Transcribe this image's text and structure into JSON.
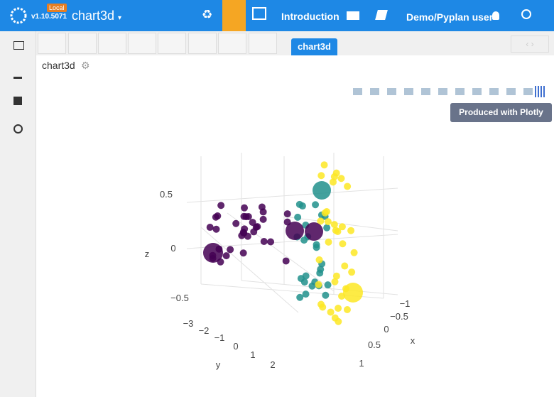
{
  "header": {
    "badge": "Local",
    "version": "v1.10.5071",
    "app_title": "chart3d",
    "menu_item": "Introduction",
    "user": "Demo/Pyplan user"
  },
  "tabs": [
    "chart3d"
  ],
  "node_title": "chart3d",
  "tooltip": "Produced with Plotly",
  "plot": {
    "z_axis": {
      "label": "z",
      "ticks": [
        "0.5",
        "0",
        "−0.5"
      ]
    },
    "y_axis": {
      "label": "y",
      "ticks": [
        "−3",
        "−2",
        "−1",
        "0",
        "1",
        "2"
      ]
    },
    "x_axis": {
      "label": "x",
      "ticks": [
        "−1",
        "−0.5",
        "0",
        "0.5",
        "1"
      ]
    }
  }
}
